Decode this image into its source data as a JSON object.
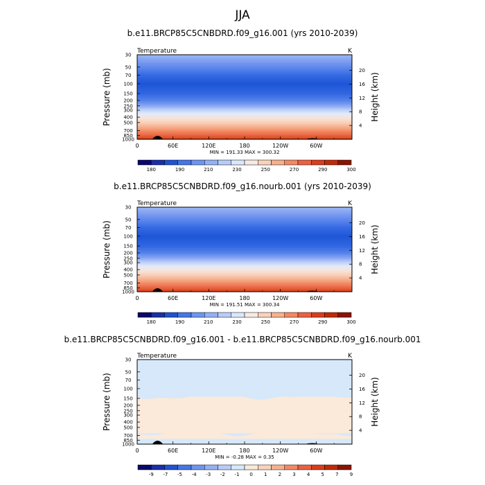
{
  "main_title": "JJA",
  "chart_data": [
    {
      "type": "heatmap",
      "title": "b.e11.BRCP85C5CNBDRD.f09_g16.001 (yrs 2010-2039)",
      "variable": "Temperature",
      "units": "K",
      "ylabel": "Pressure (mb)",
      "ylabel_right": "Height (km)",
      "x_tick_labels": [
        "0",
        "60E",
        "120E",
        "180",
        "120W",
        "60W"
      ],
      "y_tick_labels": [
        "30",
        "50",
        "70",
        "100",
        "150",
        "200",
        "250",
        "300",
        "400",
        "500",
        "700",
        "850",
        "1000"
      ],
      "y_tick_values": [
        30,
        50,
        70,
        100,
        150,
        200,
        250,
        300,
        400,
        500,
        700,
        850,
        1000
      ],
      "height_tick_labels": [
        "20",
        "16",
        "12",
        "8",
        "4"
      ],
      "height_tick_values": [
        20,
        16,
        12,
        8,
        4
      ],
      "yscale": "log",
      "ylim": [
        1000,
        30
      ],
      "xlim": [
        0,
        360
      ],
      "stats": "MIN = 191.33   MAX = 300.32",
      "colorbar_labels": [
        "180",
        "190",
        "210",
        "230",
        "250",
        "270",
        "290",
        "300"
      ],
      "colorbar_colors": [
        "#09096b",
        "#1a2fa8",
        "#2052d2",
        "#4576e8",
        "#6d95ef",
        "#94b1f3",
        "#b9ccf8",
        "#dbe7fb",
        "#f6ebe2",
        "#f9d2bb",
        "#f7b08d",
        "#f28964",
        "#ea6140",
        "#db3c1c",
        "#c02a09",
        "#8a1403"
      ],
      "profile": [
        {
          "p": 30,
          "T": 228
        },
        {
          "p": 50,
          "T": 216
        },
        {
          "p": 70,
          "T": 208
        },
        {
          "p": 100,
          "T": 203
        },
        {
          "p": 150,
          "T": 207
        },
        {
          "p": 200,
          "T": 214
        },
        {
          "p": 250,
          "T": 224
        },
        {
          "p": 300,
          "T": 235
        },
        {
          "p": 400,
          "T": 249
        },
        {
          "p": 500,
          "T": 261
        },
        {
          "p": 700,
          "T": 278
        },
        {
          "p": 850,
          "T": 287
        },
        {
          "p": 1000,
          "T": 296
        }
      ]
    },
    {
      "type": "heatmap",
      "title": "b.e11.BRCP85C5CNBDRD.f09_g16.nourb.001 (yrs 2010-2039)",
      "variable": "Temperature",
      "units": "K",
      "ylabel": "Pressure (mb)",
      "ylabel_right": "Height (km)",
      "x_tick_labels": [
        "0",
        "60E",
        "120E",
        "180",
        "120W",
        "60W"
      ],
      "y_tick_labels": [
        "30",
        "50",
        "70",
        "100",
        "150",
        "200",
        "250",
        "300",
        "400",
        "500",
        "700",
        "850",
        "1000"
      ],
      "y_tick_values": [
        30,
        50,
        70,
        100,
        150,
        200,
        250,
        300,
        400,
        500,
        700,
        850,
        1000
      ],
      "height_tick_labels": [
        "20",
        "16",
        "12",
        "8",
        "4"
      ],
      "height_tick_values": [
        20,
        16,
        12,
        8,
        4
      ],
      "yscale": "log",
      "ylim": [
        1000,
        30
      ],
      "xlim": [
        0,
        360
      ],
      "stats": "MIN = 191.51   MAX = 300.34",
      "colorbar_labels": [
        "180",
        "190",
        "210",
        "230",
        "250",
        "270",
        "290",
        "300"
      ],
      "colorbar_colors": [
        "#09096b",
        "#1a2fa8",
        "#2052d2",
        "#4576e8",
        "#6d95ef",
        "#94b1f3",
        "#b9ccf8",
        "#dbe7fb",
        "#f6ebe2",
        "#f9d2bb",
        "#f7b08d",
        "#f28964",
        "#ea6140",
        "#db3c1c",
        "#c02a09",
        "#8a1403"
      ],
      "profile": [
        {
          "p": 30,
          "T": 228
        },
        {
          "p": 50,
          "T": 216
        },
        {
          "p": 70,
          "T": 208
        },
        {
          "p": 100,
          "T": 203
        },
        {
          "p": 150,
          "T": 207
        },
        {
          "p": 200,
          "T": 214
        },
        {
          "p": 250,
          "T": 224
        },
        {
          "p": 300,
          "T": 235
        },
        {
          "p": 400,
          "T": 249
        },
        {
          "p": 500,
          "T": 261
        },
        {
          "p": 700,
          "T": 278
        },
        {
          "p": 850,
          "T": 287
        },
        {
          "p": 1000,
          "T": 296
        }
      ]
    },
    {
      "type": "heatmap",
      "title": "b.e11.BRCP85C5CNBDRD.f09_g16.001 - b.e11.BRCP85C5CNBDRD.f09_g16.nourb.001",
      "variable": "Temperature",
      "units": "K",
      "ylabel": "Pressure (mb)",
      "ylabel_right": "Height (km)",
      "x_tick_labels": [
        "0",
        "60E",
        "120E",
        "180",
        "120W",
        "60W"
      ],
      "y_tick_labels": [
        "30",
        "50",
        "70",
        "100",
        "150",
        "200",
        "250",
        "300",
        "400",
        "500",
        "700",
        "850",
        "1000"
      ],
      "y_tick_values": [
        30,
        50,
        70,
        100,
        150,
        200,
        250,
        300,
        400,
        500,
        700,
        850,
        1000
      ],
      "height_tick_labels": [
        "20",
        "16",
        "12",
        "8",
        "4"
      ],
      "height_tick_values": [
        20,
        16,
        12,
        8,
        4
      ],
      "yscale": "log",
      "ylim": [
        1000,
        30
      ],
      "xlim": [
        0,
        360
      ],
      "stats": "MIN =  -0.28   MAX =   0.35",
      "colorbar_labels": [
        "-9",
        "-7",
        "-5",
        "-4",
        "-3",
        "-2",
        "-1",
        "0",
        "1",
        "2",
        "3",
        "4",
        "5",
        "7",
        "9"
      ],
      "colorbar_colors": [
        "#09096b",
        "#1a2fa8",
        "#2052d2",
        "#4576e8",
        "#6d95ef",
        "#94b1f3",
        "#b9ccf8",
        "#d6e8fa",
        "#fbe9d9",
        "#f9d2bb",
        "#f7b08d",
        "#f28964",
        "#ea6140",
        "#db3c1c",
        "#c02a09",
        "#8a1403"
      ],
      "regions": [
        {
          "p_top": 30,
          "p_bottom": 140,
          "value": "-0.1 to 0",
          "color": "#d6e8fa"
        },
        {
          "p_top": 140,
          "p_bottom": 640,
          "value": "0 to 0.1",
          "color": "#fbe9d9"
        },
        {
          "p_top": 640,
          "p_bottom": 1000,
          "value": "-0.1 to 0",
          "color": "#d6e8fa"
        }
      ]
    }
  ]
}
